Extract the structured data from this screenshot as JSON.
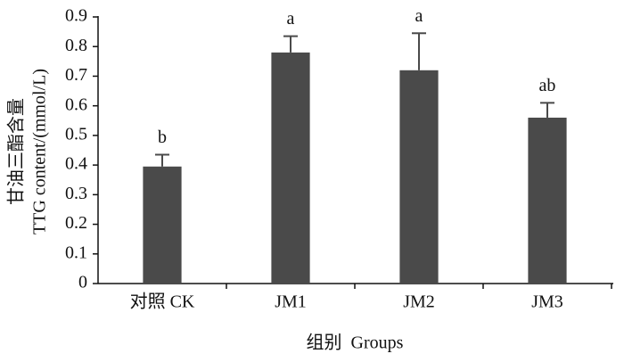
{
  "chart_data": {
    "type": "bar",
    "categories": [
      "对照 CK",
      "JM1",
      "JM2",
      "JM3"
    ],
    "values": [
      0.395,
      0.78,
      0.72,
      0.56
    ],
    "errors": [
      0.04,
      0.055,
      0.125,
      0.05
    ],
    "annotations": [
      "b",
      "a",
      "a",
      "ab"
    ],
    "color": "#4a4a4a",
    "ylabel": [
      "甘油三酯含量",
      "TTG content/(mmol/L)"
    ],
    "xlabel": "组别  Groups",
    "ylim": [
      0,
      0.9
    ],
    "yticks": [
      0,
      0.1,
      0.2,
      0.3,
      0.4,
      0.5,
      0.6,
      0.7,
      0.8,
      0.9
    ]
  }
}
